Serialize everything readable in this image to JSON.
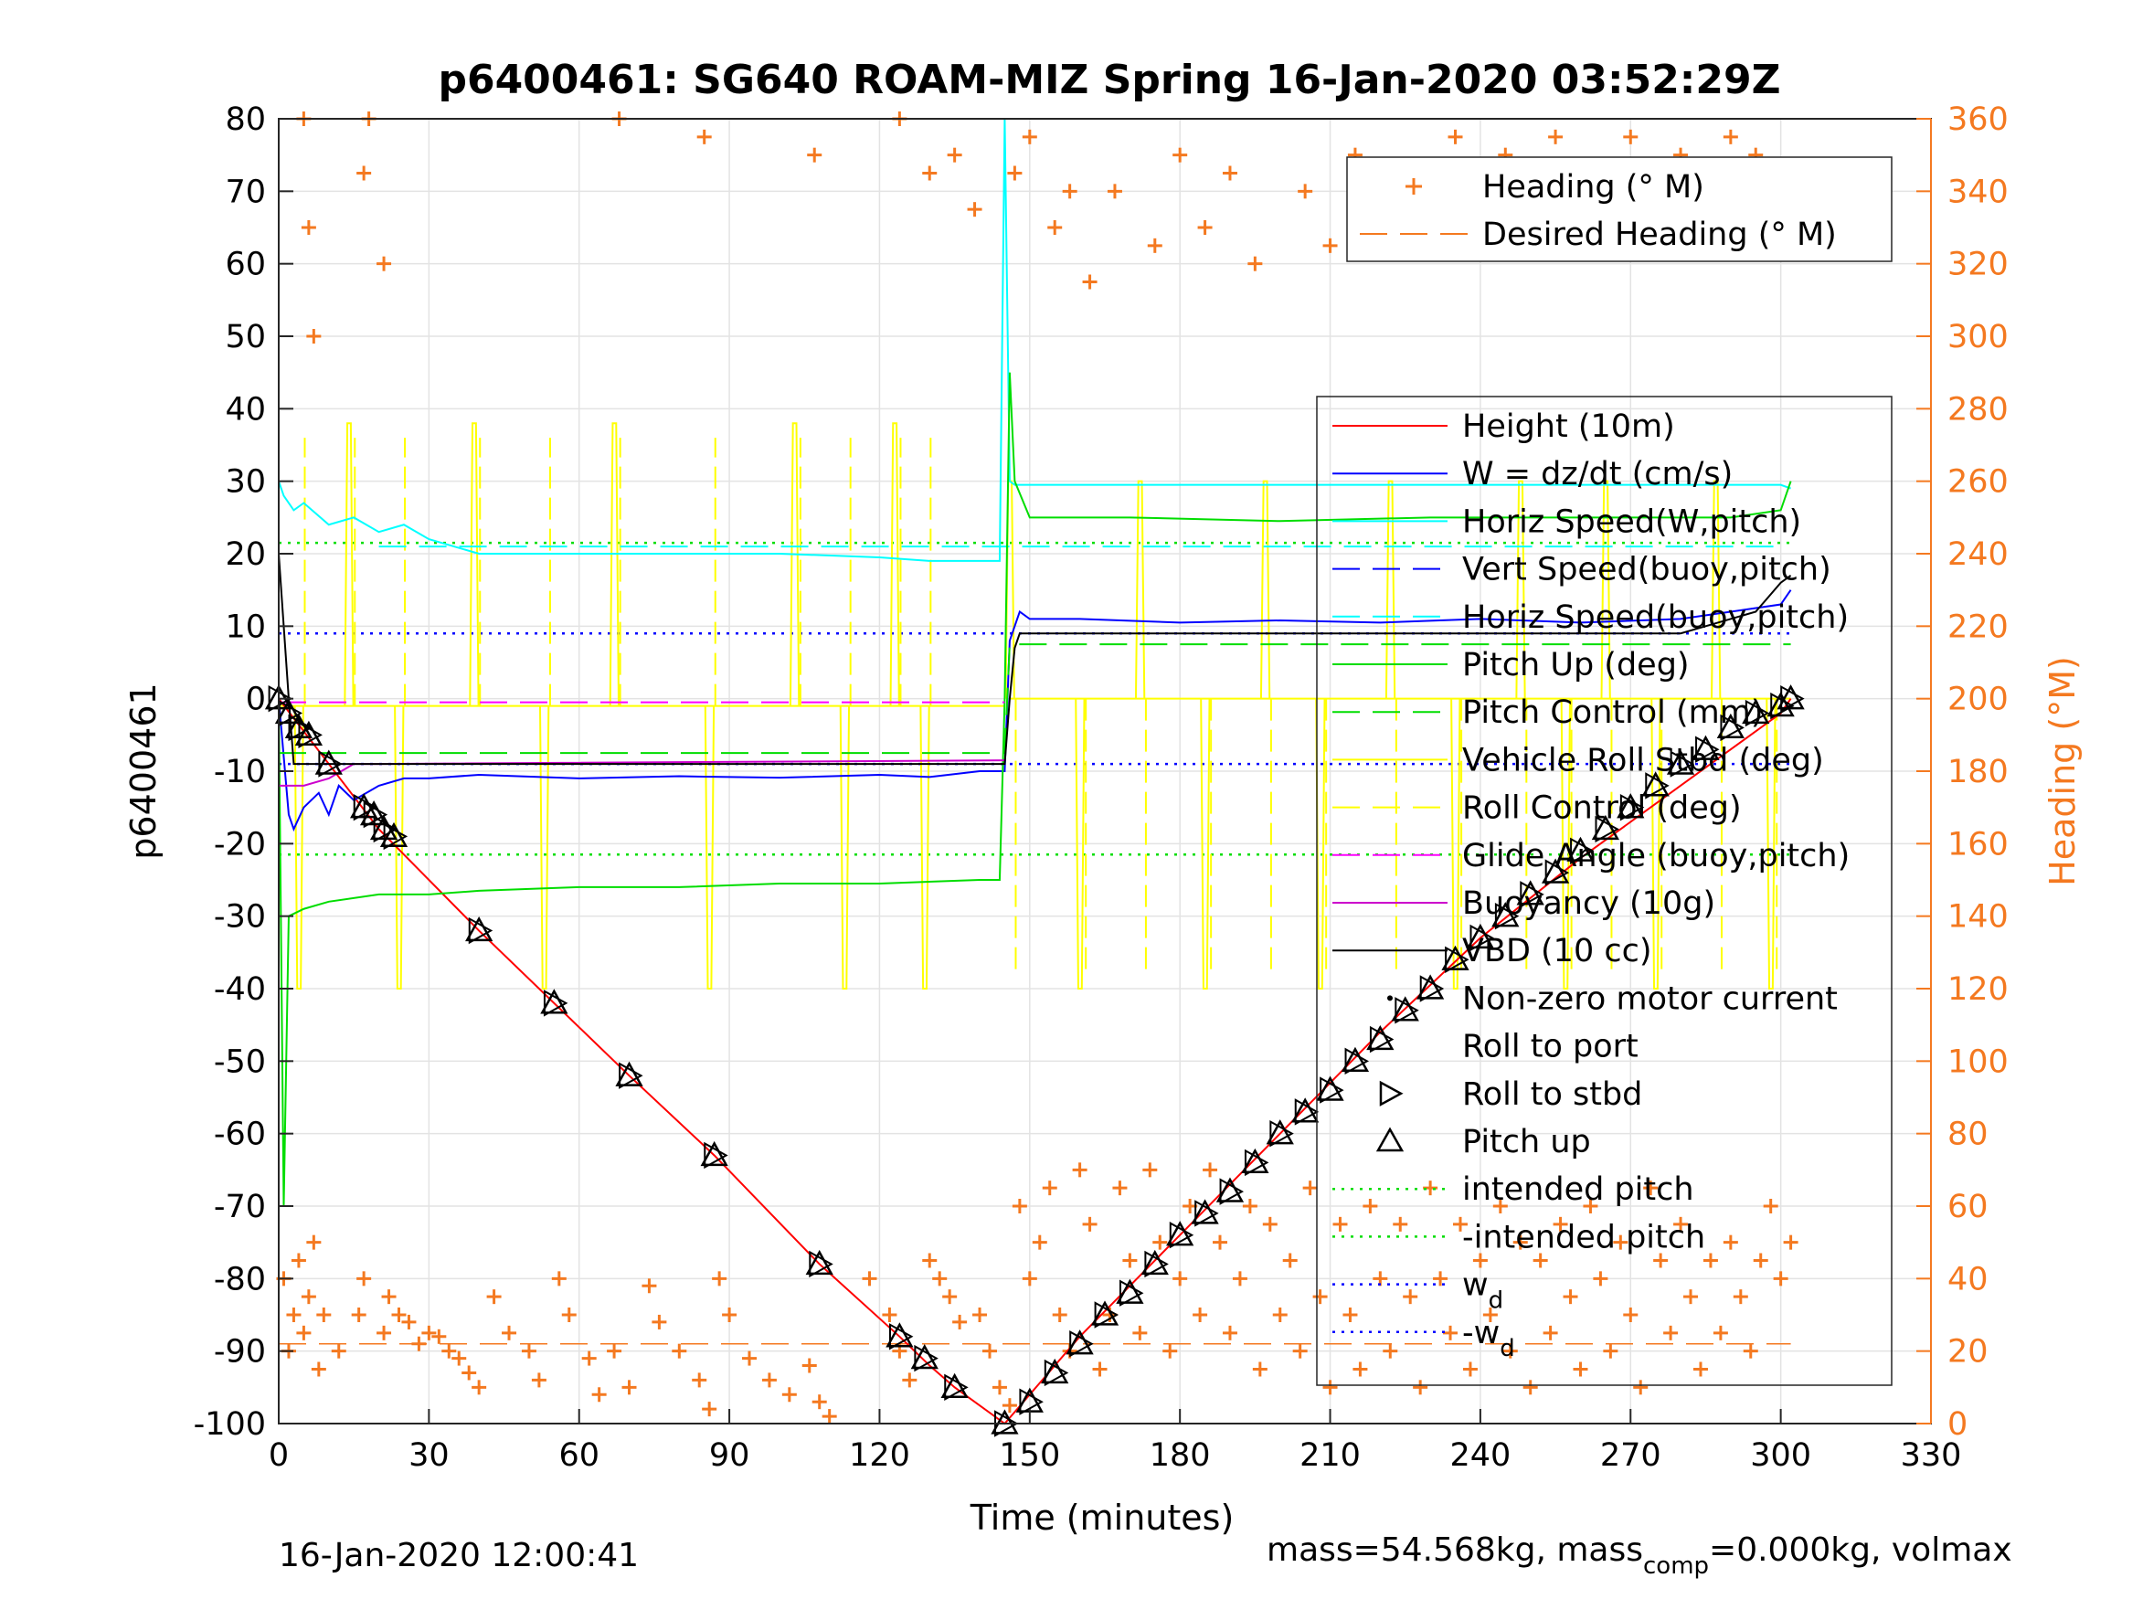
{
  "chart_data": {
    "type": "line",
    "title": "p6400461: SG640 ROAM-MIZ Spring 16-Jan-2020 03:52:29Z",
    "xlabel": "Time (minutes)",
    "ylabel": "p6400461",
    "y2label": "Heading (°M)",
    "xlim": [
      0,
      330
    ],
    "ylim": [
      -100,
      80
    ],
    "y2lim": [
      0,
      360
    ],
    "xticks": [
      0,
      30,
      60,
      90,
      120,
      150,
      180,
      210,
      240,
      270,
      300,
      330
    ],
    "yticks": [
      -100,
      -90,
      -80,
      -70,
      -60,
      -50,
      -40,
      -30,
      -20,
      -10,
      0,
      10,
      20,
      30,
      40,
      50,
      60,
      70,
      80
    ],
    "y2ticks": [
      0,
      20,
      40,
      60,
      80,
      100,
      120,
      140,
      160,
      180,
      200,
      220,
      240,
      260,
      280,
      300,
      320,
      340,
      360
    ],
    "grid": true,
    "footer_left": "16-Jan-2020 12:00:41",
    "footer_right_main": "mass=54.568kg, mass",
    "footer_right_sub": "comp",
    "footer_right_tail": "=0.000kg, volmax",
    "legend_heading": [
      {
        "label": "Heading (° M)",
        "color": "#F47920",
        "style": "plus"
      },
      {
        "label": "Desired Heading (° M)",
        "color": "#F47920",
        "style": "dash"
      }
    ],
    "legend_main": [
      {
        "label": "Height (10m)",
        "color": "#FF0000",
        "style": "solid"
      },
      {
        "label": "W = dz/dt (cm/s)",
        "color": "#0000FF",
        "style": "solid"
      },
      {
        "label": "Horiz Speed(W,pitch)",
        "color": "#00FFFF",
        "style": "solid"
      },
      {
        "label": "Vert Speed(buoy,pitch)",
        "color": "#0000FF",
        "style": "dash"
      },
      {
        "label": "Horiz Speed(buoy,pitch)",
        "color": "#00FFFF",
        "style": "dash"
      },
      {
        "label": "Pitch Up (deg)",
        "color": "#00DD00",
        "style": "solid"
      },
      {
        "label": "Pitch Control (mm)",
        "color": "#00DD00",
        "style": "dash"
      },
      {
        "label": "Vehicle Roll Stbd (deg)",
        "color": "#FFFF00",
        "style": "solid"
      },
      {
        "label": "Roll Control (deg)",
        "color": "#FFFF00",
        "style": "dash"
      },
      {
        "label": "Glide Angle (buoy,pitch)",
        "color": "#FF00FF",
        "style": "dash"
      },
      {
        "label": "Buoyancy (10g)",
        "color": "#CC00CC",
        "style": "solid"
      },
      {
        "label": "VBD (10 cc)",
        "color": "#000000",
        "style": "solid"
      },
      {
        "label": "Non-zero motor current",
        "color": "#000000",
        "style": "dot-marker"
      },
      {
        "label": "Roll to port",
        "color": "#000000",
        "style": "left-triangle"
      },
      {
        "label": "Roll to stbd",
        "color": "#000000",
        "style": "right-triangle"
      },
      {
        "label": "Pitch up",
        "color": "#000000",
        "style": "up-triangle"
      },
      {
        "label": "intended pitch",
        "color": "#00DD00",
        "style": "dotted"
      },
      {
        "label": "-intended pitch",
        "color": "#00DD00",
        "style": "dotted"
      },
      {
        "label": "w",
        "sub": "d",
        "color": "#0000FF",
        "style": "dotted"
      },
      {
        "label": "-w",
        "sub": "d",
        "color": "#0000FF",
        "style": "dotted"
      }
    ],
    "series": [
      {
        "name": "Height (10m)",
        "color": "#FF0000",
        "x": [
          0,
          10,
          20,
          40,
          55,
          70,
          87,
          108,
          124,
          130,
          135,
          145,
          150,
          160,
          180,
          200,
          220,
          240,
          260,
          280,
          300,
          302
        ],
        "y": [
          0,
          -9,
          -18,
          -32,
          -42,
          -52,
          -63,
          -78,
          -88,
          -92,
          -95,
          -100,
          -96,
          -88,
          -74,
          -60,
          -46,
          -33,
          -22,
          -12,
          -2,
          0
        ]
      },
      {
        "name": "W = dz/dt (cm/s)",
        "color": "#0000FF",
        "x": [
          0,
          1,
          2,
          3,
          5,
          8,
          10,
          12,
          15,
          20,
          25,
          30,
          40,
          60,
          80,
          100,
          120,
          130,
          140,
          145,
          146,
          148,
          150,
          160,
          180,
          200,
          220,
          240,
          260,
          280,
          300,
          302
        ],
        "y": [
          0,
          -8,
          -16,
          -18,
          -15,
          -13,
          -16,
          -12,
          -14,
          -12,
          -11,
          -11,
          -10.5,
          -11,
          -10.7,
          -10.9,
          -10.5,
          -10.8,
          -10,
          -10,
          8,
          12,
          11,
          11,
          10.5,
          10.8,
          10.5,
          11,
          10.5,
          11,
          13,
          15
        ]
      },
      {
        "name": "Horiz Speed(W,pitch)",
        "color": "#00FFFF",
        "x": [
          0,
          1,
          3,
          5,
          10,
          15,
          20,
          25,
          30,
          35,
          40,
          60,
          80,
          100,
          120,
          130,
          140,
          144,
          145,
          146,
          147,
          150,
          300,
          302
        ],
        "y": [
          30,
          28,
          26,
          27,
          24,
          25,
          23,
          24,
          22,
          21,
          20,
          20,
          20,
          20,
          19.5,
          19,
          19,
          19,
          80,
          30,
          29.5,
          29.5,
          29.5,
          29
        ]
      },
      {
        "name": "Horiz Speed(buoy,pitch)",
        "color": "#00FFFF",
        "dash": true,
        "x": [
          20,
          300
        ],
        "y": [
          21,
          21
        ]
      },
      {
        "name": "Pitch Up (deg)",
        "color": "#00DD00",
        "x": [
          0,
          1,
          2,
          5,
          10,
          20,
          30,
          40,
          60,
          80,
          100,
          120,
          140,
          144,
          145,
          146,
          147,
          150,
          170,
          200,
          230,
          260,
          290,
          300,
          302
        ],
        "y": [
          0,
          -70,
          -30,
          -29,
          -28,
          -27,
          -27,
          -26.5,
          -26,
          -26,
          -25.5,
          -25.5,
          -25,
          -25,
          0,
          45,
          30,
          25,
          25,
          24.5,
          25,
          25,
          25,
          26,
          30
        ]
      },
      {
        "name": "Pitch Control (mm)",
        "color": "#00DD00",
        "dash": true,
        "x": [
          0,
          145,
          146,
          302
        ],
        "y": [
          -7.5,
          -7.5,
          7.5,
          7.5
        ]
      },
      {
        "name": "Glide Angle (buoy,pitch)",
        "color": "#FF00FF",
        "dash": true,
        "x": [
          0,
          145
        ],
        "y": [
          -0.5,
          -0.5
        ]
      },
      {
        "name": "Buoyancy (10g)",
        "color": "#CC00CC",
        "x": [
          0,
          5,
          10,
          15,
          20,
          145
        ],
        "y": [
          -12,
          -12,
          -11,
          -9,
          -9,
          -8.5
        ]
      },
      {
        "name": "VBD (10 cc)",
        "color": "#000000",
        "x": [
          0,
          1,
          2,
          3,
          145,
          146,
          147,
          148,
          280,
          285,
          295,
          300,
          302
        ],
        "y": [
          20,
          10,
          0,
          -9,
          -9,
          0,
          7,
          9,
          9,
          10,
          12,
          16,
          17
        ]
      }
    ],
    "reference_lines": [
      {
        "name": "intended pitch",
        "y": 21.5,
        "color": "#00DD00"
      },
      {
        "name": "-intended pitch",
        "y": -21.5,
        "color": "#00DD00"
      },
      {
        "name": "w_d",
        "y": 9,
        "color": "#0000FF"
      },
      {
        "name": "-w_d",
        "y": -9,
        "color": "#0000FF"
      }
    ],
    "desired_heading_y2": 22,
    "roll_pulse_times": [
      4,
      14,
      24,
      39,
      53,
      67,
      86,
      103,
      113,
      123,
      129,
      146,
      160,
      172,
      185,
      197,
      208,
      222,
      235,
      248,
      257,
      265,
      275,
      287,
      298
    ],
    "pitch_up_markers": {
      "x": [
        0,
        2,
        4,
        6,
        10,
        17,
        19,
        21,
        23,
        40,
        55,
        70,
        87,
        108,
        124,
        129,
        135,
        145,
        150,
        155,
        160,
        165,
        170,
        175,
        180,
        185,
        190,
        195,
        200,
        205,
        210,
        215,
        220,
        225,
        230,
        235,
        240,
        245,
        250,
        255,
        260,
        265,
        270,
        275,
        280,
        285,
        290,
        295,
        300,
        302
      ],
      "y": [
        0,
        -2,
        -4,
        -5,
        -9,
        -15,
        -16,
        -18,
        -19,
        -32,
        -42,
        -52,
        -63,
        -78,
        -88,
        -91,
        -95,
        -100,
        -97,
        -93,
        -89,
        -85,
        -82,
        -78,
        -74,
        -71,
        -68,
        -64,
        -60,
        -57,
        -54,
        -50,
        -47,
        -43,
        -40,
        -36,
        -33,
        -30,
        -27,
        -24,
        -21,
        -18,
        -15,
        -12,
        -9,
        -7,
        -4,
        -2,
        -1,
        0
      ]
    },
    "heading_points": {
      "x": [
        1,
        2,
        3,
        4,
        5,
        6,
        7,
        8,
        9,
        12,
        16,
        17,
        21,
        22,
        24,
        26,
        28,
        30,
        32,
        34,
        36,
        38,
        40,
        43,
        46,
        50,
        52,
        56,
        58,
        62,
        64,
        67,
        70,
        74,
        76,
        80,
        84,
        86,
        88,
        90,
        94,
        98,
        102,
        106,
        108,
        110,
        118,
        122,
        124,
        126,
        130,
        132,
        134,
        136,
        140,
        142,
        144,
        146,
        148,
        150,
        152,
        154,
        156,
        158,
        160,
        162,
        164,
        166,
        168,
        170,
        172,
        174,
        176,
        178,
        180,
        182,
        184,
        186,
        188,
        190,
        192,
        194,
        196,
        198,
        200,
        202,
        204,
        206,
        208,
        210,
        212,
        214,
        216,
        218,
        220,
        222,
        224,
        226,
        228,
        230,
        232,
        234,
        236,
        238,
        240,
        242,
        244,
        246,
        248,
        250,
        252,
        254,
        256,
        258,
        260,
        262,
        264,
        266,
        268,
        270,
        272,
        274,
        276,
        278,
        280,
        282,
        284,
        286,
        288,
        290,
        292,
        294,
        296,
        298,
        300,
        302,
        5,
        6,
        7,
        17,
        18,
        21,
        68,
        85,
        107,
        124,
        130,
        135,
        139,
        147,
        150,
        155,
        158,
        162,
        167,
        175,
        180,
        185,
        190,
        195,
        205,
        210,
        215,
        220,
        225,
        230,
        235,
        240,
        245,
        250,
        255,
        260,
        265,
        270,
        275,
        280,
        285,
        290,
        295,
        300
      ],
      "y2": [
        40,
        20,
        30,
        45,
        25,
        35,
        50,
        15,
        30,
        20,
        30,
        40,
        25,
        35,
        30,
        28,
        22,
        25,
        24,
        20,
        18,
        14,
        10,
        35,
        25,
        20,
        12,
        40,
        30,
        18,
        8,
        20,
        10,
        38,
        28,
        20,
        12,
        4,
        40,
        30,
        18,
        12,
        8,
        16,
        6,
        2,
        40,
        30,
        20,
        12,
        45,
        40,
        35,
        28,
        30,
        20,
        10,
        5,
        60,
        40,
        50,
        65,
        30,
        20,
        70,
        55,
        15,
        30,
        65,
        45,
        25,
        70,
        50,
        20,
        40,
        60,
        30,
        70,
        50,
        25,
        40,
        60,
        15,
        55,
        30,
        45,
        20,
        65,
        35,
        10,
        55,
        30,
        15,
        60,
        40,
        20,
        55,
        35,
        10,
        65,
        40,
        25,
        55,
        15,
        45,
        30,
        60,
        20,
        50,
        10,
        45,
        25,
        55,
        35,
        15,
        60,
        40,
        20,
        50,
        30,
        10,
        65,
        45,
        25,
        55,
        35,
        15,
        45,
        25,
        50,
        35,
        20,
        45,
        60,
        40,
        50,
        360,
        330,
        300,
        345,
        360,
        320,
        360,
        355,
        350,
        360,
        345,
        350,
        335,
        345,
        355,
        330,
        340,
        315,
        340,
        325,
        350,
        330,
        345,
        320,
        340,
        325,
        350,
        335,
        345,
        330,
        355,
        340,
        350,
        335,
        355,
        345,
        330,
        355,
        340,
        350,
        345,
        355,
        350,
        335
      ]
    }
  }
}
